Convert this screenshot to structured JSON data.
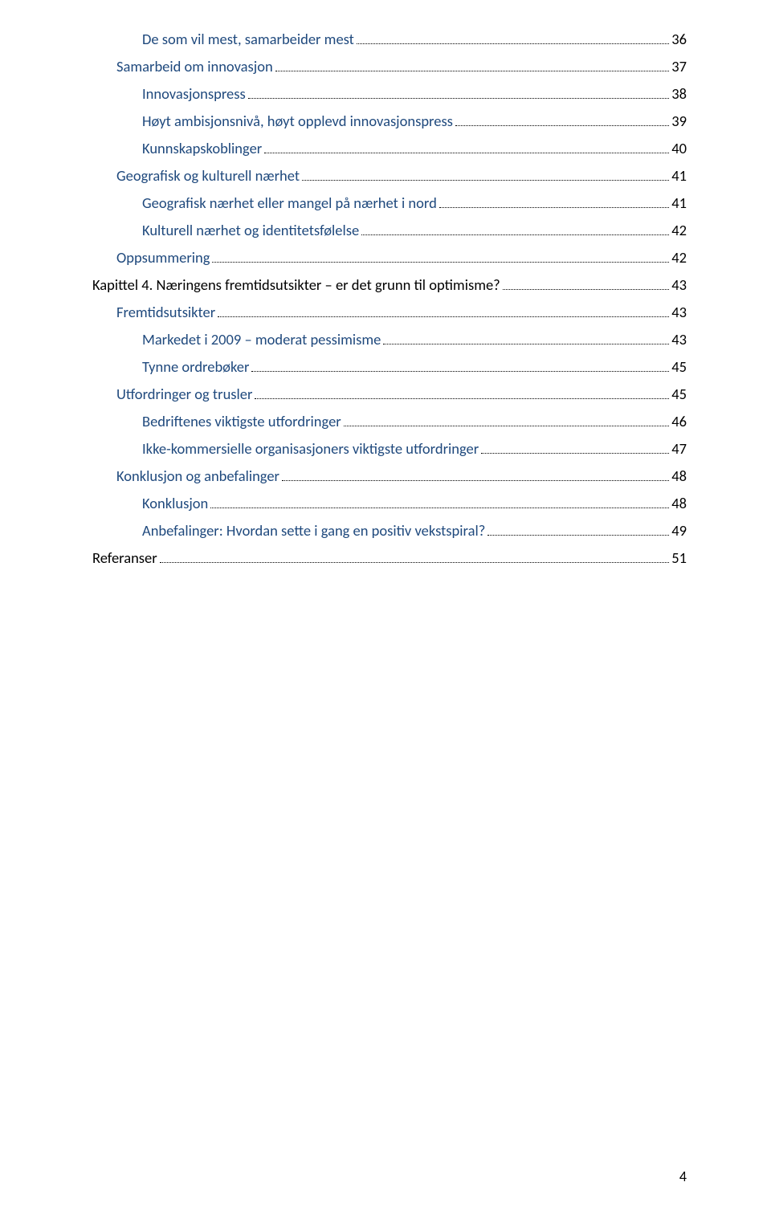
{
  "page_number": "4",
  "toc_entries": [
    {
      "level": 3,
      "title": "De som vil mest, samarbeider mest",
      "page": "36",
      "color": "blue"
    },
    {
      "level": 2,
      "title": "Samarbeid om innovasjon",
      "page": "37",
      "color": "blue"
    },
    {
      "level": 3,
      "title": "Innovasjonspress",
      "page": "38",
      "color": "blue"
    },
    {
      "level": 3,
      "title": "Høyt ambisjonsnivå, høyt opplevd innovasjonspress",
      "page": "39",
      "color": "blue"
    },
    {
      "level": 3,
      "title": "Kunnskapskoblinger",
      "page": "40",
      "color": "blue"
    },
    {
      "level": 2,
      "title": "Geografisk og kulturell nærhet",
      "page": "41",
      "color": "blue"
    },
    {
      "level": 3,
      "title": "Geografisk nærhet eller mangel på nærhet i nord",
      "page": "41",
      "color": "blue"
    },
    {
      "level": 3,
      "title": "Kulturell nærhet og identitetsfølelse",
      "page": "42",
      "color": "blue"
    },
    {
      "level": 2,
      "title": "Oppsummering",
      "page": "42",
      "color": "blue"
    },
    {
      "level": 1,
      "title": "Kapittel 4.   Næringens fremtidsutsikter – er det grunn til optimisme?",
      "page": "43",
      "color": "black"
    },
    {
      "level": 2,
      "title": "Fremtidsutsikter",
      "page": "43",
      "color": "blue"
    },
    {
      "level": 3,
      "title": "Markedet i 2009 – moderat pessimisme",
      "page": "43",
      "color": "blue"
    },
    {
      "level": 3,
      "title": "Tynne ordrebøker",
      "page": "45",
      "color": "blue"
    },
    {
      "level": 2,
      "title": "Utfordringer og trusler",
      "page": "45",
      "color": "blue"
    },
    {
      "level": 3,
      "title": "Bedriftenes viktigste utfordringer",
      "page": "46",
      "color": "blue"
    },
    {
      "level": 3,
      "title": "Ikke-kommersielle organisasjoners viktigste utfordringer",
      "page": "47",
      "color": "blue"
    },
    {
      "level": 2,
      "title": "Konklusjon og anbefalinger",
      "page": "48",
      "color": "blue"
    },
    {
      "level": 3,
      "title": "Konklusjon",
      "page": "48",
      "color": "blue"
    },
    {
      "level": 3,
      "title": "Anbefalinger: Hvordan sette i gang en positiv vekstspiral?",
      "page": "49",
      "color": "blue"
    },
    {
      "level": 1,
      "title": "Referanser",
      "page": "51",
      "color": "black"
    }
  ]
}
